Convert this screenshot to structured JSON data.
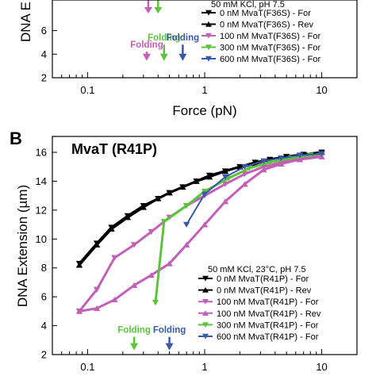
{
  "chart_data": [
    {
      "type": "line",
      "panel_letter": "",
      "title": "",
      "xlabel": "Force (pN)",
      "ylabel": "DNA E",
      "xscale": "log",
      "xlim": [
        0.05,
        20
      ],
      "ylim": [
        2,
        8.6
      ],
      "x_ticks": [
        "0.1",
        "1",
        "10"
      ],
      "x_tick_values": [
        0.1,
        1,
        10
      ],
      "y_ticks": [
        "2",
        "4",
        "6"
      ],
      "y_tick_values": [
        2,
        4,
        6
      ],
      "legend": {
        "placement": "upper-right",
        "condition": "50 mM KCl, pH 7.5",
        "entries": [
          {
            "label": "0 nM MvaT(F36S) - For",
            "color": "#000000",
            "marker": "triangle-down"
          },
          {
            "label": "0 nM MvaT(F36S) - Rev",
            "color": "#000000",
            "marker": "triangle-up"
          },
          {
            "label": "100 nM MvaT(F36S) - For",
            "color": "#c25fb8",
            "marker": "triangle-down"
          },
          {
            "label": "300 nM MvaT(F36S) - For",
            "color": "#5cc33c",
            "marker": "triangle-down"
          },
          {
            "label": "600 nM MvaT(F36S) - For",
            "color": "#3a58a8",
            "marker": "triangle-down"
          }
        ]
      },
      "annotations": [
        {
          "text": "Folding",
          "color": "#c25fb8",
          "x": 0.32,
          "y_text": 4.55,
          "y_arrow_tip": 3.5
        },
        {
          "text": "Folding",
          "color": "#5cc33c",
          "x": 0.45,
          "y_text": 5.15,
          "y_arrow_tip": 3.5
        },
        {
          "text": "Folding",
          "color": "#3a58a8",
          "x": 0.65,
          "y_text": 5.15,
          "y_arrow_tip": 3.5
        }
      ],
      "clipped_arrows": [
        {
          "color": "#c25fb8",
          "x": 0.33
        },
        {
          "color": "#5cc33c",
          "x": 0.4
        }
      ]
    },
    {
      "type": "line",
      "panel_letter": "B",
      "title": "MvaT (R41P)",
      "xlabel": "",
      "ylabel": "DNA Extension (µm)",
      "xscale": "log",
      "xlim": [
        0.05,
        20
      ],
      "ylim": [
        2,
        17.1
      ],
      "x_ticks": [
        "0.1",
        "1",
        "10"
      ],
      "x_tick_values": [
        0.1,
        1,
        10
      ],
      "y_ticks": [
        "2",
        "4",
        "6",
        "8",
        "10",
        "12",
        "14",
        "16"
      ],
      "y_tick_values": [
        2,
        4,
        6,
        8,
        10,
        12,
        14,
        16
      ],
      "legend": {
        "placement": "lower-right",
        "condition": "50 mM KCl, 23°C, pH 7.5",
        "entries": [
          {
            "label": "0 nM MvaT(R41P) - For",
            "color": "#000000",
            "marker": "triangle-down"
          },
          {
            "label": "0 nM MvaT(R41P) - Rev",
            "color": "#000000",
            "marker": "triangle-up"
          },
          {
            "label": "100 nM MvaT(R41P) - For",
            "color": "#c25fb8",
            "marker": "triangle-down"
          },
          {
            "label": "100 nM MvaT(R41P) - Rev",
            "color": "#c25fb8",
            "marker": "triangle-up"
          },
          {
            "label": "300 nM MvaT(R41P) - For",
            "color": "#5cc33c",
            "marker": "triangle-down"
          },
          {
            "label": "600 nM MvaT(R41P) - For",
            "color": "#3a58a8",
            "marker": "triangle-down"
          }
        ]
      },
      "annotations": [
        {
          "text": "Folding",
          "color": "#5cc33c",
          "x": 0.25,
          "y_text": 3.5,
          "y_arrow_tip": 2.35
        },
        {
          "text": "Folding",
          "color": "#3a58a8",
          "x": 0.5,
          "y_text": 3.5,
          "y_arrow_tip": 2.35
        }
      ],
      "series": [
        {
          "name": "0 nM MvaT(R41P) - For",
          "color": "#000000",
          "marker": "triangle-down",
          "width": 3,
          "x": [
            0.085,
            0.12,
            0.16,
            0.22,
            0.3,
            0.4,
            0.5,
            0.65,
            0.85,
            1.1,
            1.5,
            2,
            2.7,
            3.6,
            5,
            7,
            10
          ],
          "y": [
            8.3,
            9.7,
            10.8,
            11.6,
            12.3,
            12.8,
            13.2,
            13.6,
            14.0,
            14.4,
            14.7,
            15.0,
            15.3,
            15.5,
            15.7,
            15.85,
            16.0
          ]
        },
        {
          "name": "0 nM MvaT(R41P) - Rev",
          "color": "#000000",
          "marker": "triangle-up",
          "width": 3,
          "x": [
            0.085,
            0.12,
            0.16,
            0.22,
            0.3,
            0.4,
            0.5,
            0.65,
            0.85,
            1.1,
            1.5,
            2,
            2.7,
            3.6,
            5,
            7,
            10
          ],
          "y": [
            8.2,
            9.6,
            10.7,
            11.5,
            12.2,
            12.8,
            13.2,
            13.6,
            14.0,
            14.3,
            14.7,
            15.0,
            15.2,
            15.5,
            15.7,
            15.85,
            16.0
          ]
        },
        {
          "name": "100 nM MvaT(R41P) - For",
          "color": "#c25fb8",
          "marker": "triangle-down",
          "width": 3,
          "x": [
            0.085,
            0.12,
            0.17,
            0.25,
            0.35,
            0.5,
            0.7,
            1.0,
            1.5,
            2.2,
            3.2,
            4.5,
            6.5,
            10
          ],
          "y": [
            5.0,
            6.5,
            8.7,
            9.6,
            10.5,
            11.5,
            12.3,
            13.0,
            13.8,
            14.5,
            15.0,
            15.3,
            15.6,
            15.8
          ]
        },
        {
          "name": "100 nM MvaT(R41P) - Rev",
          "color": "#c25fb8",
          "marker": "triangle-up",
          "width": 3,
          "x": [
            0.085,
            0.12,
            0.17,
            0.25,
            0.35,
            0.5,
            0.7,
            1.0,
            1.5,
            2.2,
            3.2,
            4.5,
            6.5,
            10
          ],
          "y": [
            5.0,
            5.2,
            5.8,
            6.8,
            7.5,
            8.3,
            9.6,
            11.0,
            12.6,
            13.8,
            14.8,
            15.2,
            15.5,
            15.7
          ]
        },
        {
          "name": "300 nM MvaT(R41P) - For",
          "color": "#5cc33c",
          "marker": "triangle-down",
          "width": 3,
          "x": [
            0.38,
            0.45,
            0.7,
            1.0,
            1.6,
            2.4,
            3.6,
            5.5,
            8,
            10
          ],
          "y": [
            5.6,
            11.2,
            12.3,
            13.3,
            14.2,
            14.9,
            15.3,
            15.6,
            15.8,
            15.9
          ]
        },
        {
          "name": "600 nM MvaT(R41P) - For",
          "color": "#3a58a8",
          "marker": "triangle-down",
          "width": 2,
          "x": [
            0.7,
            1.0,
            1.5,
            2.2,
            3.2,
            4.5,
            6.5,
            10
          ],
          "y": [
            11.0,
            13.1,
            14.3,
            15.0,
            15.4,
            15.6,
            15.8,
            15.9
          ]
        }
      ]
    }
  ]
}
